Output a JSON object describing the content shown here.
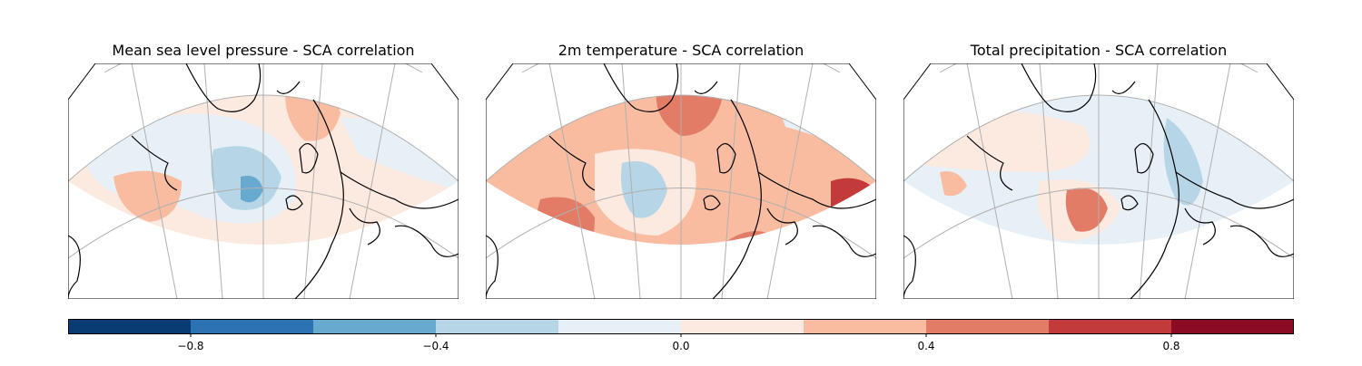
{
  "panels": [
    {
      "title": "Mean sea level pressure - SCA correlation",
      "variable": "msl"
    },
    {
      "title": "2m temperature - SCA correlation",
      "variable": "t2m"
    },
    {
      "title": "Total precipitation - SCA correlation",
      "variable": "tp"
    }
  ],
  "colorbar": {
    "levels": [
      -1.0,
      -0.8,
      -0.6,
      -0.4,
      -0.2,
      0.0,
      0.2,
      0.4,
      0.6,
      0.8,
      1.0
    ],
    "colors": [
      "#083c73",
      "#2b73b3",
      "#68a9d0",
      "#b6d6e8",
      "#e8f0f7",
      "#fce9df",
      "#f9bca0",
      "#e27c67",
      "#c23a3a",
      "#8a0b23"
    ],
    "ticks": [
      -0.8,
      -0.4,
      0.0,
      0.4,
      0.8
    ],
    "tick_labels": [
      "−0.8",
      "−0.4",
      "0.0",
      "0.4",
      "0.8"
    ]
  },
  "colors": {
    "coastline": "#000000",
    "gridline": "#b0b0b0",
    "frame": "#000000"
  }
}
